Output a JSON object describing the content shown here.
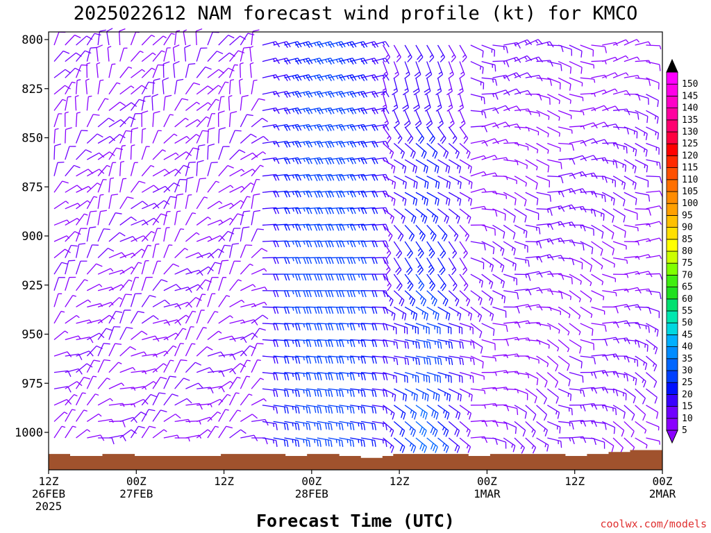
{
  "title": "2025022612 NAM forecast wind profile (kt) for KMCO",
  "credit": "coolwx.com/models",
  "chart_data": {
    "type": "wind-barb time-height profile",
    "title": "2025022612 NAM forecast wind profile (kt) for KMCO",
    "xlabel": "Forecast Time (UTC)",
    "ylabel": "",
    "y_levels": [
      800,
      825,
      850,
      875,
      900,
      925,
      950,
      975,
      1000
    ],
    "y_axis": "pressure (hPa), increasing downward",
    "x_ticks": [
      {
        "line1": "12Z",
        "line2": "26FEB",
        "line3": "2025"
      },
      {
        "line1": "00Z",
        "line2": "27FEB",
        "line3": ""
      },
      {
        "line1": "12Z",
        "line2": "",
        "line3": ""
      },
      {
        "line1": "00Z",
        "line2": "28FEB",
        "line3": ""
      },
      {
        "line1": "12Z",
        "line2": "",
        "line3": ""
      },
      {
        "line1": "00Z",
        "line2": "1MAR",
        "line3": ""
      },
      {
        "line1": "12Z",
        "line2": "",
        "line3": ""
      },
      {
        "line1": "00Z",
        "line2": "2MAR",
        "line3": ""
      }
    ],
    "x_range_hours": [
      0,
      84
    ],
    "colorbar_levels": [
      5,
      10,
      15,
      20,
      25,
      30,
      35,
      40,
      45,
      50,
      55,
      60,
      65,
      70,
      75,
      80,
      85,
      90,
      95,
      100,
      105,
      110,
      115,
      120,
      125,
      130,
      135,
      140,
      145,
      150
    ],
    "colorbar_colors": [
      "#8a00ff",
      "#7000ff",
      "#3a00ff",
      "#0010ff",
      "#0040ff",
      "#0066ff",
      "#008cff",
      "#00b0ff",
      "#00d8e0",
      "#00e8b0",
      "#00e070",
      "#20e020",
      "#40ee10",
      "#80ff00",
      "#ccff00",
      "#ffff00",
      "#ffe000",
      "#ffc000",
      "#ffa000",
      "#ff8c00",
      "#ff7000",
      "#ff5000",
      "#ff2a00",
      "#ff0000",
      "#ff0040",
      "#ff0070",
      "#ff00a0",
      "#ff00c8",
      "#ff00e8",
      "#ff00ff"
    ],
    "terrain_color": "#a0522d",
    "surface_pressure_hpa": [
      1011,
      1011,
      1012,
      1012,
      1012,
      1011,
      1011,
      1011,
      1012,
      1012,
      1012,
      1012,
      1012,
      1012,
      1012,
      1012,
      1011,
      1011,
      1011,
      1011,
      1011,
      1011,
      1012,
      1012,
      1011,
      1011,
      1011,
      1012,
      1012,
      1013,
      1013,
      1012,
      1011,
      1011,
      1011,
      1011,
      1011,
      1011,
      1011,
      1012,
      1012,
      1011,
      1011,
      1011,
      1011,
      1011,
      1011,
      1011,
      1012,
      1012,
      1011,
      1011,
      1010,
      1010,
      1009,
      1009,
      1009
    ],
    "rows_description": "wind barbs plotted every 1.5 h at 25 levels between 800 and 1000 hPa",
    "rows": [
      {
        "p": 800,
        "dir": [
          210,
          210,
          215,
          220,
          220,
          225,
          225,
          230,
          230,
          230,
          240,
          250,
          260,
          265,
          265,
          265,
          270,
          275,
          270,
          275,
          275,
          270,
          265,
          270,
          270,
          270,
          270,
          270,
          270,
          270,
          270,
          270,
          270,
          270,
          270,
          270,
          270,
          270,
          270,
          270,
          270,
          270,
          270,
          270,
          270,
          270,
          270,
          270,
          270,
          270,
          270,
          270,
          270,
          270,
          270,
          270,
          270
        ],
        "spd": [
          10,
          10,
          10,
          10,
          10,
          10,
          10,
          10,
          10,
          10,
          10,
          10,
          10,
          10,
          10,
          10,
          10,
          10,
          10,
          10,
          15,
          20,
          20,
          20,
          20,
          20,
          20,
          15,
          15,
          15,
          15,
          15,
          15,
          15,
          15,
          15,
          15,
          15,
          15,
          15,
          15,
          15,
          15,
          15,
          15,
          15,
          15,
          15,
          15,
          15,
          15,
          15,
          15,
          15,
          15,
          15,
          15
        ]
      }
    ]
  }
}
